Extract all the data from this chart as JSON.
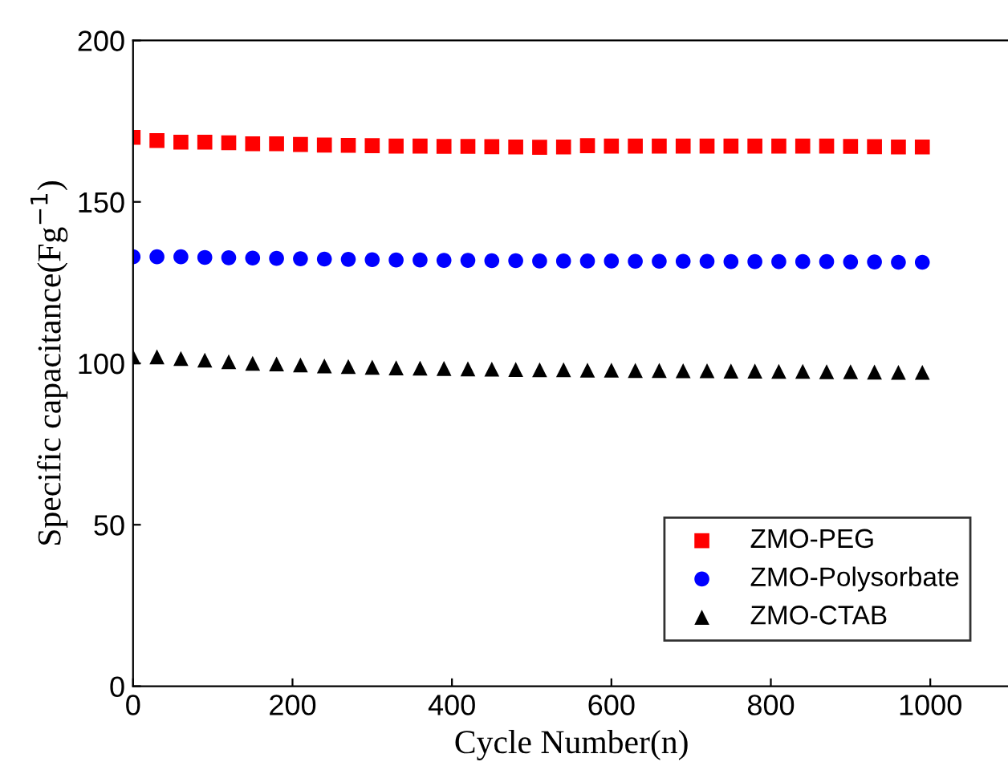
{
  "chart_data": {
    "type": "scatter",
    "xlabel": "Cycle Number(n)",
    "ylabel": "Specific capacitance(Fg$^{−1}$)",
    "x": [
      0,
      30,
      60,
      90,
      120,
      150,
      180,
      210,
      240,
      270,
      300,
      330,
      360,
      390,
      420,
      450,
      480,
      510,
      540,
      570,
      600,
      630,
      660,
      690,
      720,
      750,
      780,
      810,
      840,
      870,
      900,
      930,
      960,
      990
    ],
    "xlim": [
      0,
      1100
    ],
    "xticks": [
      0,
      200,
      400,
      600,
      800,
      1000
    ],
    "ylim": [
      0,
      200
    ],
    "yticks": [
      0,
      50,
      100,
      150,
      200
    ],
    "grid": false,
    "legend": "bottom right",
    "series": [
      {
        "name": "ZMO-PEG",
        "color": "#ff0000",
        "marker": "square",
        "values": [
          170,
          169,
          168.5,
          168.5,
          168.3,
          168,
          168,
          167.8,
          167.6,
          167.5,
          167.4,
          167.3,
          167.3,
          167.2,
          167.2,
          167.1,
          167,
          166.9,
          167,
          167.4,
          167.3,
          167.3,
          167.3,
          167.3,
          167.3,
          167.3,
          167.3,
          167.3,
          167.3,
          167.3,
          167.2,
          167.1,
          167,
          167
        ]
      },
      {
        "name": "ZMO-Polysorbate",
        "color": "#0000ff",
        "marker": "circle",
        "values": [
          133,
          133,
          133,
          132.8,
          132.7,
          132.6,
          132.5,
          132.4,
          132.3,
          132.2,
          132.1,
          132,
          132,
          131.9,
          131.9,
          131.8,
          131.8,
          131.7,
          131.7,
          131.7,
          131.7,
          131.6,
          131.6,
          131.6,
          131.6,
          131.5,
          131.5,
          131.5,
          131.5,
          131.5,
          131.4,
          131.4,
          131.3,
          131.3
        ]
      },
      {
        "name": "ZMO-CTAB",
        "color": "#000000",
        "marker": "triangle",
        "values": [
          102,
          102,
          101.5,
          101,
          100.5,
          100,
          99.8,
          99.5,
          99.2,
          99,
          98.8,
          98.6,
          98.5,
          98.4,
          98.3,
          98.2,
          98.1,
          98,
          98,
          97.9,
          97.9,
          97.8,
          97.8,
          97.7,
          97.7,
          97.6,
          97.6,
          97.5,
          97.5,
          97.4,
          97.4,
          97.3,
          97.2,
          97.2
        ]
      }
    ]
  }
}
